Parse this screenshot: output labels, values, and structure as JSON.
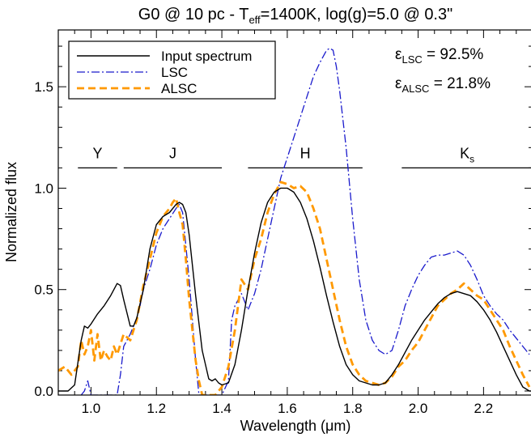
{
  "chart_data": {
    "type": "line",
    "title_parts": {
      "pre": "G0 @ 10 pc - T",
      "sub": "eff",
      "post": "=1400K, log(g)=5.0 @ 0.3\""
    },
    "xlabel": "Wavelength (μm)",
    "ylabel": "Normalized flux",
    "xlim": [
      0.9,
      2.35
    ],
    "ylim": [
      -0.02,
      1.78
    ],
    "x_ticks": [
      1.0,
      1.2,
      1.4,
      1.6,
      1.8,
      2.0,
      2.2
    ],
    "x_tick_labels": [
      "1.0",
      "1.2",
      "1.4",
      "1.6",
      "1.8",
      "2.0",
      "2.2"
    ],
    "y_ticks": [
      0.0,
      0.5,
      1.0,
      1.5
    ],
    "y_tick_labels": [
      "0.0",
      "0.5",
      "1.0",
      "1.5"
    ],
    "bands": [
      {
        "name": "Y",
        "sub": "",
        "x_start": 0.96,
        "x_end": 1.08,
        "y": 1.1
      },
      {
        "name": "J",
        "sub": "",
        "x_start": 1.1,
        "x_end": 1.4,
        "y": 1.1
      },
      {
        "name": "H",
        "sub": "",
        "x_start": 1.48,
        "x_end": 1.83,
        "y": 1.1
      },
      {
        "name": "K",
        "sub": "s",
        "x_start": 1.95,
        "x_end": 2.35,
        "y": 1.1
      }
    ],
    "efficiencies": [
      {
        "symbol": "ε",
        "sub": "LSC",
        "text": " = 92.5%"
      },
      {
        "symbol": "ε",
        "sub": "ALSC",
        "text": " = 21.8%"
      }
    ],
    "legend_position": "top-left",
    "series": [
      {
        "name": "Input spectrum",
        "color": "#000000",
        "dash": "",
        "width": 1.4,
        "x": [
          0.9,
          0.93,
          0.95,
          0.97,
          0.98,
          0.99,
          1.0,
          1.02,
          1.04,
          1.06,
          1.08,
          1.09,
          1.1,
          1.12,
          1.13,
          1.14,
          1.16,
          1.18,
          1.2,
          1.22,
          1.24,
          1.26,
          1.27,
          1.28,
          1.29,
          1.3,
          1.32,
          1.34,
          1.36,
          1.37,
          1.38,
          1.39,
          1.4,
          1.42,
          1.44,
          1.46,
          1.48,
          1.5,
          1.52,
          1.54,
          1.56,
          1.58,
          1.6,
          1.62,
          1.64,
          1.66,
          1.68,
          1.7,
          1.72,
          1.74,
          1.76,
          1.78,
          1.8,
          1.82,
          1.84,
          1.86,
          1.88,
          1.9,
          1.92,
          1.94,
          1.96,
          1.98,
          2.0,
          2.02,
          2.04,
          2.06,
          2.08,
          2.1,
          2.12,
          2.14,
          2.16,
          2.18,
          2.2,
          2.22,
          2.24,
          2.26,
          2.28,
          2.3,
          2.32,
          2.34,
          2.35
        ],
        "values": [
          0.0,
          0.0,
          0.03,
          0.25,
          0.32,
          0.31,
          0.33,
          0.38,
          0.42,
          0.47,
          0.53,
          0.52,
          0.45,
          0.32,
          0.32,
          0.36,
          0.5,
          0.7,
          0.82,
          0.86,
          0.88,
          0.92,
          0.93,
          0.92,
          0.88,
          0.77,
          0.47,
          0.2,
          0.06,
          0.05,
          0.06,
          0.04,
          0.03,
          0.04,
          0.13,
          0.3,
          0.5,
          0.68,
          0.83,
          0.93,
          0.98,
          1.0,
          1.0,
          0.98,
          0.93,
          0.85,
          0.74,
          0.61,
          0.47,
          0.34,
          0.22,
          0.13,
          0.08,
          0.05,
          0.04,
          0.03,
          0.03,
          0.04,
          0.08,
          0.13,
          0.19,
          0.25,
          0.3,
          0.35,
          0.39,
          0.43,
          0.46,
          0.48,
          0.49,
          0.48,
          0.47,
          0.44,
          0.4,
          0.35,
          0.29,
          0.22,
          0.15,
          0.08,
          0.02,
          0.0,
          0.0
        ]
      },
      {
        "name": "LSC",
        "color": "#1a1acc",
        "dash": "10,3,2,3",
        "width": 1.3,
        "x": [
          0.97,
          0.98,
          0.99,
          1.0,
          1.01,
          1.02,
          1.03,
          1.04,
          1.06,
          1.08,
          1.09,
          1.1,
          1.12,
          1.14,
          1.15,
          1.16,
          1.18,
          1.2,
          1.22,
          1.24,
          1.26,
          1.27,
          1.28,
          1.3,
          1.32,
          1.33,
          1.34,
          1.36,
          1.38,
          1.4,
          1.42,
          1.43,
          1.44,
          1.46,
          1.48,
          1.5,
          1.52,
          1.54,
          1.56,
          1.58,
          1.6,
          1.62,
          1.64,
          1.66,
          1.68,
          1.7,
          1.71,
          1.72,
          1.73,
          1.74,
          1.75,
          1.76,
          1.78,
          1.8,
          1.82,
          1.84,
          1.86,
          1.88,
          1.9,
          1.92,
          1.94,
          1.96,
          1.98,
          2.0,
          2.02,
          2.04,
          2.06,
          2.08,
          2.1,
          2.12,
          2.14,
          2.16,
          2.18,
          2.2,
          2.22,
          2.24,
          2.26,
          2.28,
          2.3,
          2.32,
          2.34
        ],
        "values": [
          -0.02,
          0.0,
          0.05,
          -0.02,
          -0.02,
          -0.02,
          -0.02,
          -0.02,
          -0.02,
          -0.02,
          0.08,
          0.22,
          0.28,
          0.36,
          0.42,
          0.5,
          0.6,
          0.72,
          0.8,
          0.85,
          0.9,
          0.92,
          0.88,
          0.55,
          0.15,
          -0.02,
          -0.02,
          -0.02,
          -0.02,
          -0.02,
          0.05,
          0.35,
          0.42,
          0.48,
          0.4,
          0.48,
          0.6,
          0.75,
          0.9,
          1.05,
          1.15,
          1.25,
          1.35,
          1.45,
          1.55,
          1.62,
          1.65,
          1.68,
          1.69,
          1.68,
          1.6,
          1.48,
          1.2,
          0.85,
          0.55,
          0.35,
          0.25,
          0.2,
          0.18,
          0.2,
          0.3,
          0.42,
          0.5,
          0.57,
          0.62,
          0.66,
          0.67,
          0.67,
          0.68,
          0.69,
          0.67,
          0.62,
          0.55,
          0.47,
          0.42,
          0.38,
          0.35,
          0.3,
          0.26,
          0.22,
          0.18
        ]
      },
      {
        "name": "ALSC",
        "color": "#ff9900",
        "dash": "9,5",
        "width": 2.8,
        "x": [
          0.9,
          0.92,
          0.94,
          0.96,
          0.97,
          0.98,
          0.99,
          1.0,
          1.01,
          1.02,
          1.03,
          1.04,
          1.05,
          1.06,
          1.07,
          1.08,
          1.1,
          1.12,
          1.14,
          1.16,
          1.18,
          1.2,
          1.22,
          1.24,
          1.25,
          1.26,
          1.27,
          1.28,
          1.29,
          1.3,
          1.31,
          1.32,
          1.33,
          1.34,
          1.35,
          1.36,
          1.38,
          1.4,
          1.42,
          1.44,
          1.46,
          1.48,
          1.5,
          1.52,
          1.54,
          1.56,
          1.58,
          1.6,
          1.62,
          1.64,
          1.66,
          1.68,
          1.7,
          1.72,
          1.74,
          1.76,
          1.78,
          1.8,
          1.82,
          1.84,
          1.86,
          1.88,
          1.9,
          1.92,
          1.94,
          1.96,
          1.98,
          2.0,
          2.02,
          2.04,
          2.06,
          2.08,
          2.1,
          2.12,
          2.14,
          2.16,
          2.18,
          2.2,
          2.22,
          2.24,
          2.26,
          2.28,
          2.3,
          2.32,
          2.34
        ],
        "values": [
          0.1,
          0.12,
          0.08,
          0.12,
          0.25,
          0.18,
          0.22,
          0.3,
          0.15,
          0.28,
          0.15,
          0.2,
          0.17,
          0.15,
          0.22,
          0.18,
          0.28,
          0.25,
          0.35,
          0.52,
          0.65,
          0.78,
          0.86,
          0.9,
          0.93,
          0.95,
          0.88,
          0.82,
          0.65,
          0.45,
          0.3,
          0.15,
          0.05,
          -0.02,
          -0.02,
          -0.02,
          -0.02,
          0.02,
          0.12,
          0.3,
          0.55,
          0.5,
          0.65,
          0.75,
          0.88,
          0.97,
          1.03,
          1.02,
          1.0,
          1.01,
          0.98,
          0.9,
          0.8,
          0.65,
          0.5,
          0.35,
          0.22,
          0.13,
          0.08,
          0.05,
          0.04,
          0.03,
          0.04,
          0.07,
          0.12,
          0.15,
          0.2,
          0.24,
          0.3,
          0.36,
          0.42,
          0.45,
          0.48,
          0.5,
          0.53,
          0.5,
          0.47,
          0.45,
          0.4,
          0.35,
          0.3,
          0.22,
          0.15,
          0.08,
          0.02
        ]
      }
    ]
  }
}
